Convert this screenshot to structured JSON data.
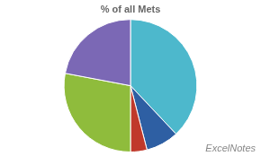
{
  "chart_data": {
    "type": "pie",
    "title": "% of all Mets",
    "values": [
      38,
      8,
      4,
      28,
      22
    ],
    "colors": [
      "#4db8cc",
      "#2e5fa3",
      "#c0392b",
      "#8fbc3c",
      "#7b68b5"
    ],
    "annotations": [
      "ExcelNotes"
    ]
  }
}
